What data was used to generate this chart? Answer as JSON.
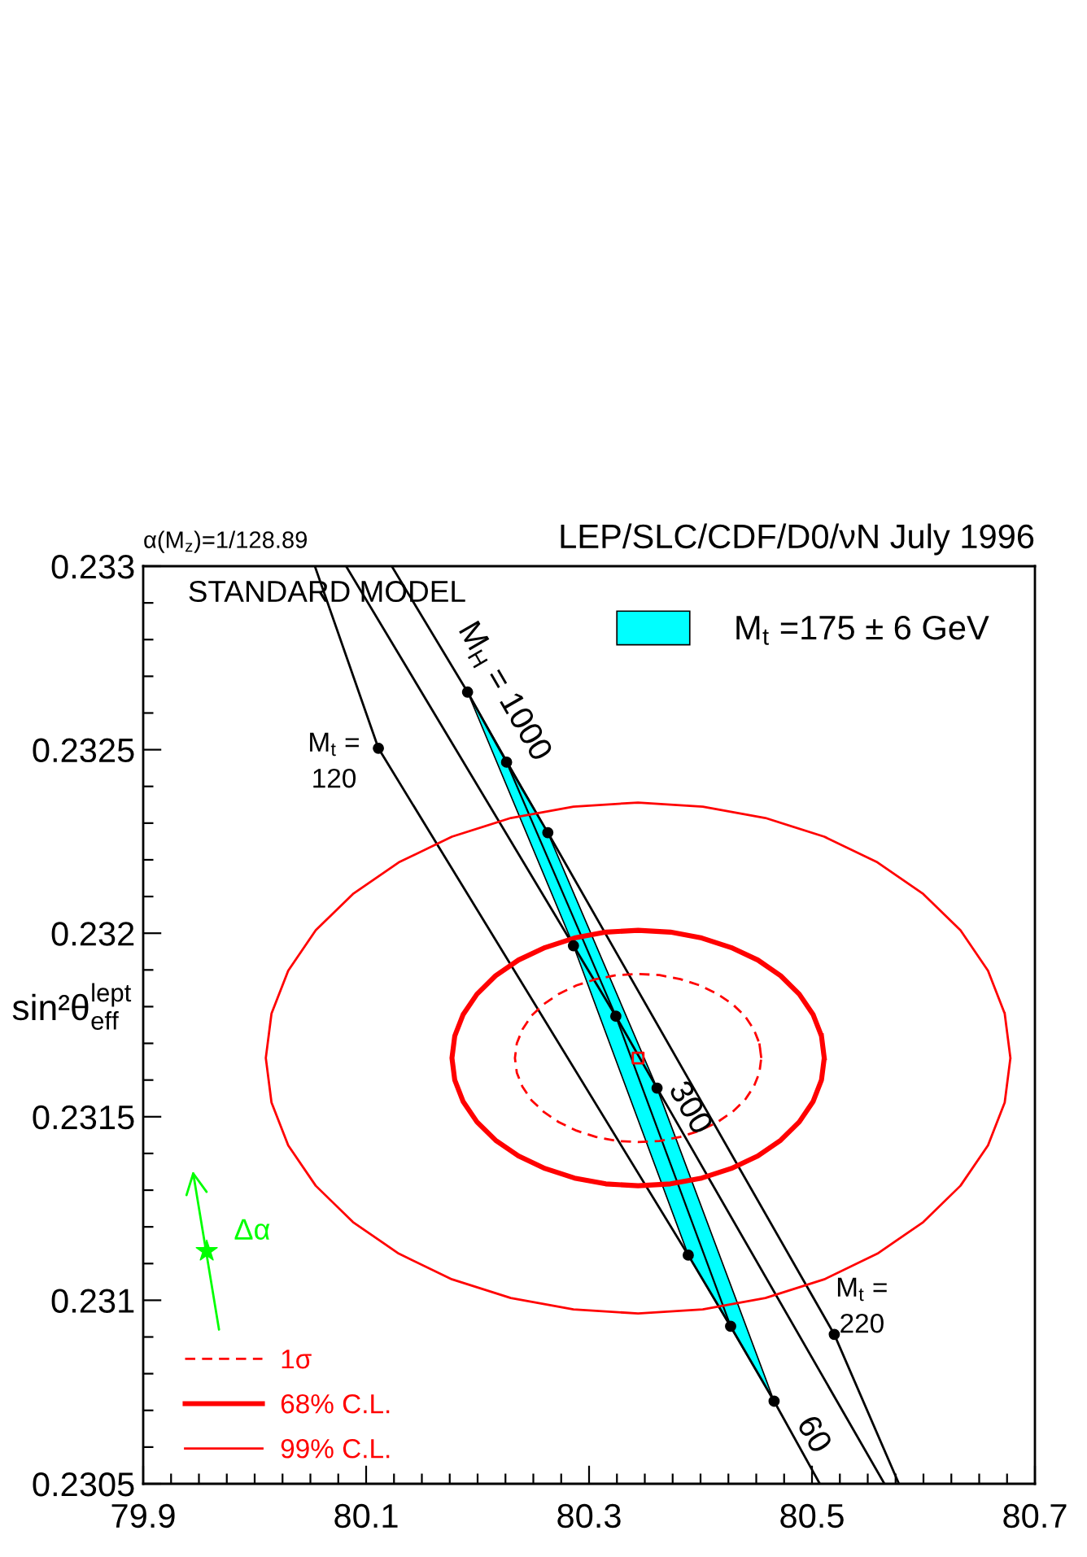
{
  "chart_data": {
    "type": "line",
    "title": "LEP/SLC/CDF/D0/νN July 1996",
    "subtitle": "α(M$_{z}$)=1/128.89",
    "ylabel": "sin²θ$^{lept}$$_{eff}$",
    "xlim": [
      79.9,
      80.7
    ],
    "ylim": [
      0.2305,
      0.233
    ],
    "xticks": [
      79.9,
      80.1,
      80.3,
      80.5,
      80.7
    ],
    "yticks": [
      0.2305,
      0.231,
      0.2315,
      0.232,
      0.2325,
      0.233
    ],
    "legend": "bottom left",
    "annotations": [
      "STANDARD MODEL",
      "M$_{t}$ =\n120",
      "M$_{t}$ =\n220",
      "M$_{H}$ = 1000",
      "300",
      "60"
    ],
    "series": [
      {
        "name": "M$_{t}$ =175 ± 6 GeV",
        "type": "area",
        "color": "#00ffff",
        "x": [
          80.191,
          80.263,
          80.361,
          80.466,
          80.389,
          80.286,
          80.191
        ],
        "values": [
          0.232657,
          0.232274,
          0.231578,
          0.230725,
          0.231123,
          0.231966,
          0.232657
        ]
      },
      {
        "color": "#000000",
        "x": [
          80.054,
          80.111,
          80.389,
          80.427,
          80.466,
          80.507
        ],
        "values": [
          0.233,
          0.232504,
          0.231123,
          0.230929,
          0.230725,
          0.2305
        ]
      },
      {
        "color": "#000000",
        "x": [
          80.082,
          80.286,
          80.324,
          80.361,
          80.565
        ],
        "values": [
          0.233,
          0.231966,
          0.231774,
          0.231578,
          0.2305
        ]
      },
      {
        "color": "#000000",
        "x": [
          80.123,
          80.191,
          80.226,
          80.263,
          80.52,
          80.578
        ],
        "values": [
          0.233,
          0.232657,
          0.232466,
          0.232274,
          0.230907,
          0.2305
        ]
      },
      {
        "color": "#000000",
        "x": [
          80.226,
          80.324,
          80.427
        ],
        "values": [
          0.232466,
          0.231774,
          0.230929
        ]
      },
      {
        "name": "1σ",
        "color": "#ff0000",
        "line_style": "dashed",
        "x": [
          80.4545,
          80.4528,
          80.4478,
          80.4397,
          80.4286,
          80.415,
          80.3993,
          80.3818,
          80.3632,
          80.344,
          80.3248,
          80.3062,
          80.2888,
          80.273,
          80.2594,
          80.2483,
          80.2402,
          80.2352,
          80.2335,
          80.2352,
          80.2402,
          80.2483,
          80.2594,
          80.273,
          80.2888,
          80.3062,
          80.3248,
          80.344,
          80.3632,
          80.3818,
          80.3993,
          80.415,
          80.4286,
          80.4397,
          80.4478,
          80.4528,
          80.4545,
          80.4528
        ],
        "values": [
          0.23166,
          0.2317,
          0.231738,
          0.231775,
          0.231807,
          0.231835,
          0.231858,
          0.231875,
          0.231886,
          0.231889,
          0.231886,
          0.231875,
          0.231858,
          0.231835,
          0.231807,
          0.231775,
          0.231738,
          0.2317,
          0.23166,
          0.23162,
          0.231582,
          0.231545,
          0.231513,
          0.231485,
          0.231462,
          0.231445,
          0.231434,
          0.231431,
          0.231434,
          0.231445,
          0.231462,
          0.231485,
          0.231513,
          0.231545,
          0.231582,
          0.23162,
          0.23166,
          0.2317
        ]
      },
      {
        "name": "68% C.L.",
        "color": "#ff0000",
        "line_style": "solid",
        "x": [
          80.511,
          80.5085,
          80.5009,
          80.4886,
          80.4719,
          80.4514,
          80.4275,
          80.4011,
          80.373,
          80.344,
          80.315,
          80.2869,
          80.2605,
          80.2367,
          80.2161,
          80.1994,
          80.1871,
          80.1795,
          80.177,
          80.1795,
          80.1871,
          80.1994,
          80.2161,
          80.2367,
          80.2605,
          80.2869,
          80.315,
          80.344,
          80.373,
          80.4011,
          80.4275,
          80.4514,
          80.4719,
          80.4886,
          80.5009,
          80.5085,
          80.511,
          80.5085
        ],
        "values": [
          0.23166,
          0.23172,
          0.231779,
          0.231834,
          0.231884,
          0.231927,
          0.231961,
          0.231987,
          0.232003,
          0.232008,
          0.232003,
          0.231987,
          0.231961,
          0.231927,
          0.231884,
          0.231834,
          0.231779,
          0.23172,
          0.23166,
          0.2316,
          0.231541,
          0.231486,
          0.231436,
          0.231393,
          0.231359,
          0.231333,
          0.231317,
          0.231312,
          0.231317,
          0.231333,
          0.231359,
          0.231393,
          0.231436,
          0.231486,
          0.231541,
          0.2316,
          0.23166,
          0.23172
        ]
      },
      {
        "name": "99% C.L.",
        "color": "#ff0000",
        "line_style": "solid",
        "x": [
          80.678,
          80.6729,
          80.6579,
          80.6332,
          80.5998,
          80.5587,
          80.511,
          80.4582,
          80.402,
          80.344,
          80.286,
          80.2298,
          80.177,
          80.1293,
          80.0882,
          80.0548,
          80.0301,
          80.0151,
          80.01,
          80.0151,
          80.0301,
          80.0548,
          80.0882,
          80.1293,
          80.177,
          80.2298,
          80.286,
          80.344,
          80.402,
          80.4582,
          80.511,
          80.5587,
          80.5998,
          80.6332,
          80.6579,
          80.6729,
          80.678,
          80.6729
        ],
        "values": [
          0.23166,
          0.231781,
          0.231898,
          0.232008,
          0.232107,
          0.232193,
          0.232263,
          0.232314,
          0.232345,
          0.232356,
          0.232345,
          0.232314,
          0.232263,
          0.232193,
          0.232107,
          0.232008,
          0.231898,
          0.231781,
          0.23166,
          0.231539,
          0.231422,
          0.231312,
          0.231213,
          0.231127,
          0.231057,
          0.231006,
          0.230975,
          0.230964,
          0.230975,
          0.231006,
          0.231057,
          0.231127,
          0.231213,
          0.231312,
          0.231422,
          0.231539,
          0.23166,
          0.231781
        ]
      },
      {
        "type": "scatter",
        "marker": "circle",
        "color": "#000000",
        "x": [
          80.111,
          80.191,
          80.226,
          80.263,
          80.286,
          80.324,
          80.361,
          80.389,
          80.427,
          80.466,
          80.52
        ],
        "values": [
          0.232504,
          0.232657,
          0.232466,
          0.232274,
          0.231966,
          0.231774,
          0.231578,
          0.231123,
          0.230929,
          0.230725,
          0.230907
        ]
      },
      {
        "type": "scatter",
        "marker": "square",
        "color": "#ff0000",
        "x": [
          80.344
        ],
        "values": [
          0.23166
        ]
      },
      {
        "name": "Δα",
        "type": "scatter",
        "marker": "star",
        "color": "#00ff00",
        "x": [
          79.957
        ],
        "values": [
          0.231134
        ]
      }
    ]
  }
}
